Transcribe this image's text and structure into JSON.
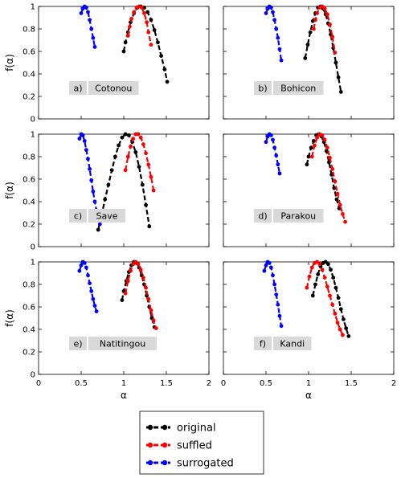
{
  "chart_data": [
    {
      "type": "scatter",
      "label": "a)",
      "name": "Cotonou",
      "xlabel": "",
      "ylabel": "f(α)",
      "xlim": [
        0,
        2
      ],
      "ylim": [
        0,
        1
      ],
      "series": [
        {
          "name": "original",
          "x": [
            1.0,
            1.02,
            1.05,
            1.08,
            1.12,
            1.16,
            1.2,
            1.24,
            1.28,
            1.32,
            1.36,
            1.4,
            1.44,
            1.48,
            1.51
          ],
          "y": [
            0.6,
            0.68,
            0.77,
            0.86,
            0.94,
            0.99,
            1.0,
            0.99,
            0.95,
            0.88,
            0.79,
            0.68,
            0.56,
            0.44,
            0.33
          ]
        },
        {
          "name": "suffled",
          "x": [
            1.05,
            1.07,
            1.09,
            1.12,
            1.15,
            1.18,
            1.21,
            1.24,
            1.27,
            1.29,
            1.32
          ],
          "y": [
            0.74,
            0.82,
            0.89,
            0.95,
            0.99,
            1.0,
            0.99,
            0.94,
            0.86,
            0.77,
            0.66
          ]
        },
        {
          "name": "surrogated",
          "x": [
            0.5,
            0.52,
            0.54,
            0.56,
            0.58,
            0.6,
            0.62,
            0.64,
            0.66
          ],
          "y": [
            0.94,
            0.98,
            1.0,
            0.99,
            0.95,
            0.88,
            0.8,
            0.72,
            0.64
          ]
        }
      ]
    },
    {
      "type": "scatter",
      "label": "b)",
      "name": "Bohicon",
      "xlabel": "",
      "ylabel": "",
      "xlim": [
        0,
        2
      ],
      "ylim": [
        0,
        1
      ],
      "series": [
        {
          "name": "original",
          "x": [
            0.96,
            0.99,
            1.02,
            1.05,
            1.08,
            1.11,
            1.14,
            1.17,
            1.2,
            1.23,
            1.26,
            1.29,
            1.32,
            1.35,
            1.38
          ],
          "y": [
            0.54,
            0.66,
            0.77,
            0.87,
            0.94,
            0.99,
            1.0,
            0.98,
            0.93,
            0.85,
            0.75,
            0.63,
            0.5,
            0.37,
            0.24
          ]
        },
        {
          "name": "suffled",
          "x": [
            1.06,
            1.08,
            1.1,
            1.13,
            1.16,
            1.19,
            1.22,
            1.25,
            1.28,
            1.31
          ],
          "y": [
            0.8,
            0.88,
            0.94,
            0.99,
            1.0,
            0.98,
            0.93,
            0.84,
            0.73,
            0.59
          ]
        },
        {
          "name": "surrogated",
          "x": [
            0.5,
            0.52,
            0.54,
            0.56,
            0.58,
            0.6,
            0.62,
            0.64,
            0.66,
            0.68
          ],
          "y": [
            0.94,
            0.98,
            1.0,
            0.99,
            0.95,
            0.88,
            0.8,
            0.72,
            0.62,
            0.52
          ]
        }
      ]
    },
    {
      "type": "scatter",
      "label": "c)",
      "name": "Save",
      "xlabel": "",
      "ylabel": "f(α)",
      "xlim": [
        0,
        2
      ],
      "ylim": [
        0,
        1
      ],
      "series": [
        {
          "name": "original",
          "x": [
            0.7,
            0.74,
            0.78,
            0.82,
            0.86,
            0.9,
            0.94,
            0.98,
            1.02,
            1.06,
            1.1,
            1.14,
            1.18,
            1.22,
            1.26,
            1.3
          ],
          "y": [
            0.15,
            0.28,
            0.42,
            0.55,
            0.68,
            0.8,
            0.9,
            0.97,
            1.0,
            0.99,
            0.93,
            0.84,
            0.71,
            0.55,
            0.37,
            0.18
          ]
        },
        {
          "name": "suffled",
          "x": [
            1.02,
            1.05,
            1.08,
            1.11,
            1.14,
            1.17,
            1.2,
            1.23,
            1.26,
            1.29,
            1.32,
            1.35
          ],
          "y": [
            0.68,
            0.8,
            0.89,
            0.96,
            1.0,
            1.0,
            0.97,
            0.91,
            0.83,
            0.73,
            0.62,
            0.5
          ]
        },
        {
          "name": "surrogated",
          "x": [
            0.48,
            0.5,
            0.52,
            0.54,
            0.56,
            0.58,
            0.6,
            0.62,
            0.64,
            0.66,
            0.68,
            0.7,
            0.72
          ],
          "y": [
            0.96,
            1.0,
            0.99,
            0.94,
            0.86,
            0.78,
            0.69,
            0.59,
            0.49,
            0.4,
            0.32,
            0.26,
            0.2
          ]
        }
      ]
    },
    {
      "type": "scatter",
      "label": "d)",
      "name": "Parakou",
      "xlabel": "",
      "ylabel": "",
      "xlim": [
        0,
        2
      ],
      "ylim": [
        0,
        1
      ],
      "series": [
        {
          "name": "original",
          "x": [
            0.98,
            1.0,
            1.03,
            1.06,
            1.09,
            1.12,
            1.15,
            1.18,
            1.21,
            1.24,
            1.27,
            1.3,
            1.33,
            1.36
          ],
          "y": [
            0.73,
            0.8,
            0.88,
            0.94,
            0.99,
            1.0,
            0.98,
            0.93,
            0.85,
            0.75,
            0.64,
            0.52,
            0.42,
            0.34
          ]
        },
        {
          "name": "suffled",
          "x": [
            1.04,
            1.07,
            1.1,
            1.13,
            1.16,
            1.19,
            1.22,
            1.25,
            1.28,
            1.31,
            1.34,
            1.37,
            1.4,
            1.43
          ],
          "y": [
            0.8,
            0.9,
            0.97,
            1.0,
            0.99,
            0.95,
            0.88,
            0.79,
            0.69,
            0.58,
            0.47,
            0.37,
            0.29,
            0.22
          ]
        },
        {
          "name": "surrogated",
          "x": [
            0.5,
            0.52,
            0.54,
            0.56,
            0.58,
            0.6,
            0.62,
            0.64,
            0.66
          ],
          "y": [
            0.93,
            0.98,
            1.0,
            0.99,
            0.95,
            0.88,
            0.81,
            0.73,
            0.65
          ]
        }
      ]
    },
    {
      "type": "scatter",
      "label": "e)",
      "name": "Natitingou",
      "xlabel": "α",
      "ylabel": "f(α)",
      "xlim": [
        0,
        2
      ],
      "ylim": [
        0,
        1
      ],
      "series": [
        {
          "name": "original",
          "x": [
            0.98,
            1.0,
            1.03,
            1.06,
            1.09,
            1.12,
            1.15,
            1.18,
            1.21,
            1.24,
            1.27,
            1.3,
            1.33,
            1.36
          ],
          "y": [
            0.66,
            0.74,
            0.83,
            0.91,
            0.97,
            1.0,
            0.99,
            0.95,
            0.88,
            0.8,
            0.7,
            0.6,
            0.5,
            0.42
          ]
        },
        {
          "name": "suffled",
          "x": [
            1.02,
            1.05,
            1.08,
            1.11,
            1.14,
            1.17,
            1.2,
            1.23,
            1.26,
            1.29,
            1.32,
            1.35,
            1.38
          ],
          "y": [
            0.72,
            0.83,
            0.92,
            0.98,
            1.0,
            0.98,
            0.93,
            0.86,
            0.77,
            0.67,
            0.57,
            0.48,
            0.41
          ]
        },
        {
          "name": "surrogated",
          "x": [
            0.48,
            0.5,
            0.52,
            0.54,
            0.56,
            0.58,
            0.6,
            0.62,
            0.64,
            0.66,
            0.68
          ],
          "y": [
            0.92,
            0.97,
            1.0,
            0.99,
            0.95,
            0.88,
            0.81,
            0.74,
            0.67,
            0.61,
            0.56
          ]
        }
      ]
    },
    {
      "type": "scatter",
      "label": "f)",
      "name": "Kandi",
      "xlabel": "α",
      "ylabel": "",
      "xlim": [
        0,
        2
      ],
      "ylim": [
        0,
        1
      ],
      "series": [
        {
          "name": "original",
          "x": [
            1.05,
            1.08,
            1.11,
            1.14,
            1.17,
            1.2,
            1.23,
            1.26,
            1.29,
            1.32,
            1.35,
            1.38,
            1.41,
            1.44,
            1.47
          ],
          "y": [
            0.7,
            0.8,
            0.89,
            0.96,
            0.99,
            1.0,
            0.98,
            0.93,
            0.86,
            0.77,
            0.68,
            0.58,
            0.49,
            0.41,
            0.34
          ]
        },
        {
          "name": "suffled",
          "x": [
            0.98,
            1.01,
            1.04,
            1.07,
            1.1,
            1.13,
            1.16,
            1.19,
            1.22,
            1.25,
            1.28,
            1.31,
            1.34,
            1.37,
            1.4
          ],
          "y": [
            0.77,
            0.87,
            0.95,
            0.99,
            1.0,
            0.98,
            0.93,
            0.86,
            0.78,
            0.7,
            0.62,
            0.54,
            0.46,
            0.4,
            0.35
          ]
        },
        {
          "name": "surrogated",
          "x": [
            0.48,
            0.5,
            0.52,
            0.54,
            0.56,
            0.58,
            0.6,
            0.62,
            0.64,
            0.66,
            0.68
          ],
          "y": [
            0.92,
            0.97,
            1.0,
            0.99,
            0.95,
            0.88,
            0.8,
            0.71,
            0.62,
            0.52,
            0.43
          ]
        }
      ]
    }
  ],
  "axes": {
    "x_ticks": [
      "0",
      "0.5",
      "1",
      "1.5",
      "2"
    ],
    "y_ticks": [
      "0",
      "0.2",
      "0.4",
      "0.6",
      "0.8",
      "1"
    ]
  },
  "legend": {
    "items": [
      {
        "label": "original",
        "color": "#000000"
      },
      {
        "label": "suffled",
        "color": "#ff0000"
      },
      {
        "label": "surrogated",
        "color": "#0000ff"
      }
    ]
  },
  "colors": {
    "original": "#000000",
    "suffled": "#ff0000",
    "surrogated": "#0000ff",
    "label_box": "#d9d9d9"
  }
}
